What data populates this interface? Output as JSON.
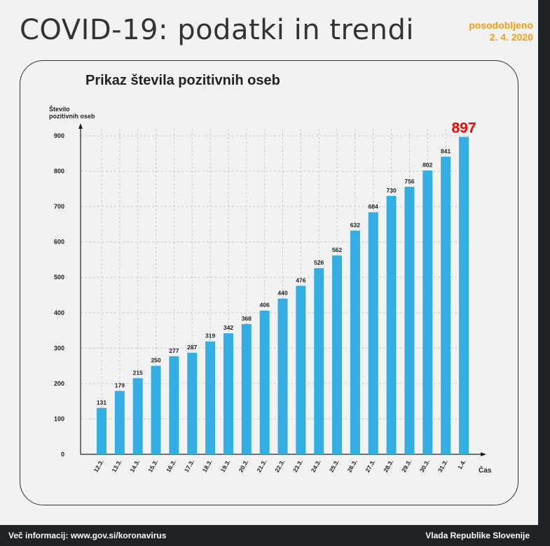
{
  "header": {
    "title": "COVID-19: podatki in trendi",
    "updated_label": "posodobljeno",
    "updated_date": "2. 4. 2020"
  },
  "footer": {
    "left": "Več informacij: www.gov.si/koronavirus",
    "right": "Vlada Republike Slovenije"
  },
  "colors": {
    "bar": "#33aee2",
    "highlight": "#ff0000",
    "accent": "#f39c12"
  },
  "chart_data": {
    "type": "bar",
    "title": "Prikaz števila pozitivnih oseb",
    "ylabel_line1": "Število",
    "ylabel_line2": "pozitivnih oseb",
    "xlabel": "Čas",
    "ylim": [
      0,
      900
    ],
    "yticks": [
      0,
      100,
      200,
      300,
      400,
      500,
      600,
      700,
      800,
      900
    ],
    "grid": true,
    "categories": [
      "12.3.",
      "13.3.",
      "14.3.",
      "15.3.",
      "16.3.",
      "17.3.",
      "18.3.",
      "19.3.",
      "20.3.",
      "21.3.",
      "22.3.",
      "23.3.",
      "24.3.",
      "25.3.",
      "26.3.",
      "27.3.",
      "28.3.",
      "29.3.",
      "30.3.",
      "31.3.",
      "1.4."
    ],
    "values": [
      131,
      179,
      215,
      250,
      277,
      287,
      319,
      342,
      368,
      406,
      440,
      476,
      526,
      562,
      632,
      684,
      730,
      756,
      802,
      841,
      897
    ]
  }
}
